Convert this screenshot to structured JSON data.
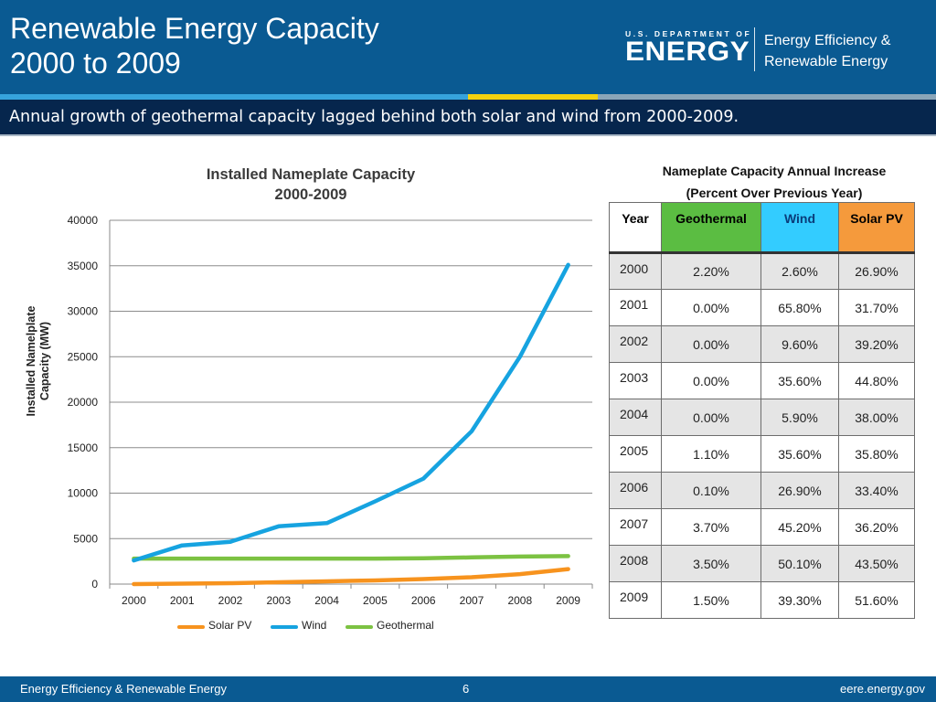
{
  "header": {
    "title_line1": "Renewable Energy Capacity",
    "title_line2": "2000 to 2009",
    "logo_small": "U.S. DEPARTMENT OF",
    "logo_big": "ENERGY",
    "office_line1": "Energy Efficiency &",
    "office_line2": "Renewable Energy"
  },
  "subtitle": "Annual growth of geothermal capacity lagged behind both solar and wind from 2000-2009.",
  "chart_data": {
    "type": "line",
    "title": "Installed Nameplate Capacity 2000-2009",
    "title_line1": "Installed Nameplate Capacity",
    "title_line2": "2000-2009",
    "ylabel": "Installed Namelplate Capacity (MW)",
    "ylabel_line1": "Installed Namelplate",
    "ylabel_line2": "Capacity (MW)",
    "ylim": [
      0,
      40000
    ],
    "yticks": [
      "0",
      "5000",
      "10000",
      "15000",
      "20000",
      "25000",
      "30000",
      "35000",
      "40000"
    ],
    "categories": [
      "2000",
      "2001",
      "2002",
      "2003",
      "2004",
      "2005",
      "2006",
      "2007",
      "2008",
      "2009"
    ],
    "grid": true,
    "legend_position": "bottom",
    "series": [
      {
        "name": "Solar PV",
        "color": "#f7931e",
        "values": [
          0,
          50,
          100,
          200,
          300,
          400,
          550,
          750,
          1100,
          1650
        ]
      },
      {
        "name": "Wind",
        "color": "#16a3e0",
        "values": [
          2600,
          4250,
          4650,
          6350,
          6700,
          9100,
          11600,
          16800,
          25000,
          35100
        ]
      },
      {
        "name": "Geothermal",
        "color": "#7cc242",
        "values": [
          2800,
          2800,
          2800,
          2800,
          2800,
          2800,
          2830,
          2930,
          3030,
          3080
        ]
      }
    ]
  },
  "table": {
    "title_line1": "Nameplate Capacity Annual Increase",
    "title_line2": "(Percent Over Previous Year)",
    "headers": {
      "year": "Year",
      "geothermal": "Geothermal",
      "wind": "Wind",
      "solar": "Solar PV"
    },
    "header_colors": {
      "geothermal": "#5bbd42",
      "wind": "#33ccff",
      "solar": "#f59a3c"
    },
    "rows": [
      {
        "year": "2000",
        "geothermal": "2.20%",
        "wind": "2.60%",
        "solar": "26.90%"
      },
      {
        "year": "2001",
        "geothermal": "0.00%",
        "wind": "65.80%",
        "solar": "31.70%"
      },
      {
        "year": "2002",
        "geothermal": "0.00%",
        "wind": "9.60%",
        "solar": "39.20%"
      },
      {
        "year": "2003",
        "geothermal": "0.00%",
        "wind": "35.60%",
        "solar": "44.80%"
      },
      {
        "year": "2004",
        "geothermal": "0.00%",
        "wind": "5.90%",
        "solar": "38.00%"
      },
      {
        "year": "2005",
        "geothermal": "1.10%",
        "wind": "35.60%",
        "solar": "35.80%"
      },
      {
        "year": "2006",
        "geothermal": "0.10%",
        "wind": "26.90%",
        "solar": "33.40%"
      },
      {
        "year": "2007",
        "geothermal": "3.70%",
        "wind": "45.20%",
        "solar": "36.20%"
      },
      {
        "year": "2008",
        "geothermal": "3.50%",
        "wind": "50.10%",
        "solar": "43.50%"
      },
      {
        "year": "2009",
        "geothermal": "1.50%",
        "wind": "39.30%",
        "solar": "51.60%"
      }
    ]
  },
  "footer": {
    "left": "Energy Efficiency & Renewable Energy",
    "page_number": "6",
    "right": "eere.energy.gov"
  }
}
